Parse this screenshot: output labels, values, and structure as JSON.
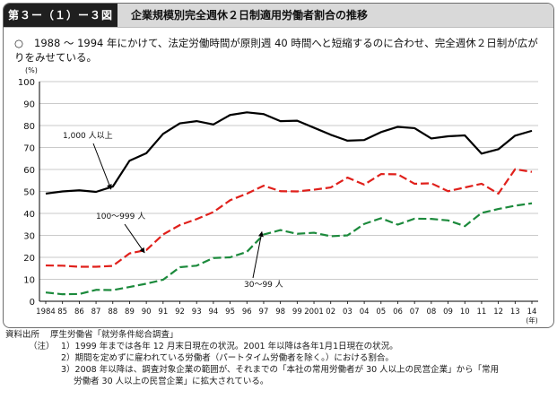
{
  "header": {
    "figure_label": "第３ー（１）ー３図",
    "title": "企業規模別完全週休２日制適用労働者割合の推移"
  },
  "summary": {
    "bullet": "○",
    "text": "1988 ～ 1994 年にかけて、法定労働時間が原則週 40 時間へと短縮するのに合わせ、完全週休２日制が広がりをみせている。"
  },
  "chart_data": {
    "type": "line",
    "ylabel": "(%)",
    "xlabel": "(年)",
    "ylim": [
      0,
      100
    ],
    "yticks": [
      0,
      10,
      20,
      30,
      40,
      50,
      60,
      70,
      80,
      90,
      100
    ],
    "grid": "horizontal",
    "categories": [
      "1984",
      "85",
      "86",
      "87",
      "88",
      "89",
      "90",
      "91",
      "92",
      "93",
      "94",
      "95",
      "96",
      "97",
      "98",
      "99",
      "2001",
      "02",
      "03",
      "04",
      "05",
      "06",
      "07",
      "08",
      "09",
      "10",
      "11",
      "12",
      "13",
      "14"
    ],
    "series": [
      {
        "name": "1,000 人以上",
        "color": "#000000",
        "dash": "solid",
        "values": [
          49,
          50,
          50.5,
          49.8,
          52.2,
          64,
          67.4,
          76.2,
          81,
          82,
          80.5,
          84.8,
          86,
          85.2,
          82,
          82.2,
          79,
          75.8,
          73.1,
          73.4,
          77,
          79.4,
          78.8,
          74.1,
          75.1,
          75.5,
          67.2,
          69.2,
          75.4,
          77.6
        ]
      },
      {
        "name": "100～999 人",
        "color": "#e0201b",
        "dash": "dashed",
        "values": [
          16.3,
          16.2,
          15.7,
          15.7,
          16.1,
          21.8,
          23.3,
          30.4,
          34.7,
          37.4,
          40.6,
          46,
          49,
          52.6,
          50.1,
          50,
          50.8,
          51.8,
          56.3,
          53.1,
          57.9,
          57.8,
          53.5,
          53.7,
          50.1,
          51.8,
          53.5,
          49,
          60.1,
          58.9
        ]
      },
      {
        "name": "30～99 人",
        "color": "#1c8a3c",
        "dash": "dashed",
        "values": [
          4,
          3.2,
          3.3,
          5.2,
          5.1,
          6.5,
          8,
          9.8,
          15.5,
          16.2,
          19.7,
          20,
          22.5,
          30.4,
          32.4,
          30.7,
          31.2,
          29.6,
          30,
          35.2,
          37.8,
          34.9,
          37.6,
          37.5,
          36.8,
          34.2,
          40.2,
          42,
          43.5,
          44.6
        ]
      }
    ],
    "annotations": [
      {
        "series": 0,
        "text": "1,000 人以上"
      },
      {
        "series": 1,
        "text": "100～999 人"
      },
      {
        "series": 2,
        "text": "30～99 人"
      }
    ]
  },
  "source": {
    "label": "資料出所",
    "text": "厚生労働省「就労条件総合調査」",
    "notes_label": "（注）",
    "notes": [
      "1）1999 年までは各年 12 月末日現在の状況。2001 年以降は各年1月1日現在の状況。",
      "2）期間を定めずに雇われている労働者（パートタイム労働者を除く。）における割合。",
      "3）2008 年以降は、調査対象企業の範囲が、それまでの「本社の常用労働者が 30 人以上の民営企業」から「常用",
      "労働者 30 人以上の民営企業」に拡大されている。"
    ]
  }
}
